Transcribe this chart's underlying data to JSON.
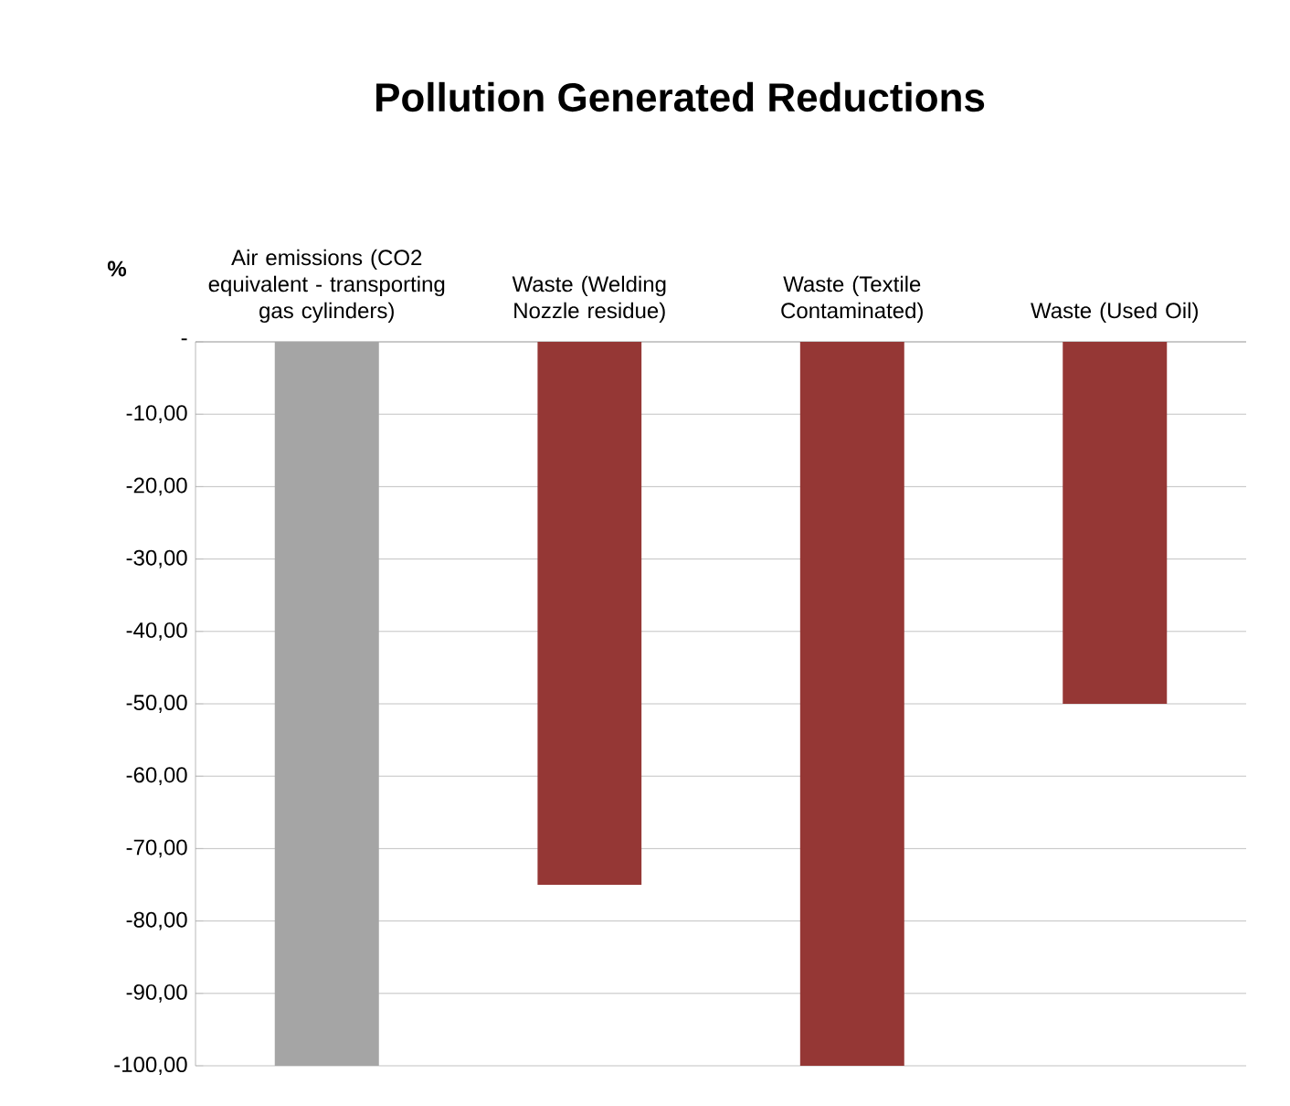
{
  "chart_data": {
    "type": "bar",
    "title": "Pollution Generated Reductions",
    "ylabel": "%",
    "categories": [
      "Air emissions (CO2 equivalent - transporting gas cylinders)",
      "Waste (Welding Nozzle residue)",
      "Waste (Textile Contaminated)",
      "Waste (Used Oil)"
    ],
    "values": [
      -100,
      -75,
      -100,
      -50
    ],
    "colors": [
      "#a5a5a5",
      "#953735",
      "#953735",
      "#953735"
    ],
    "ylim": [
      -100,
      0
    ],
    "yticks": [
      {
        "value": 0,
        "label": "-"
      },
      {
        "value": -10,
        "label": "-10,00"
      },
      {
        "value": -20,
        "label": "-20,00"
      },
      {
        "value": -30,
        "label": "-30,00"
      },
      {
        "value": -40,
        "label": "-40,00"
      },
      {
        "value": -50,
        "label": "-50,00"
      },
      {
        "value": -60,
        "label": "-60,00"
      },
      {
        "value": -70,
        "label": "-70,00"
      },
      {
        "value": -80,
        "label": "-80,00"
      },
      {
        "value": -90,
        "label": "-90,00"
      },
      {
        "value": -100,
        "label": "-100,00"
      }
    ],
    "grid": "y"
  }
}
